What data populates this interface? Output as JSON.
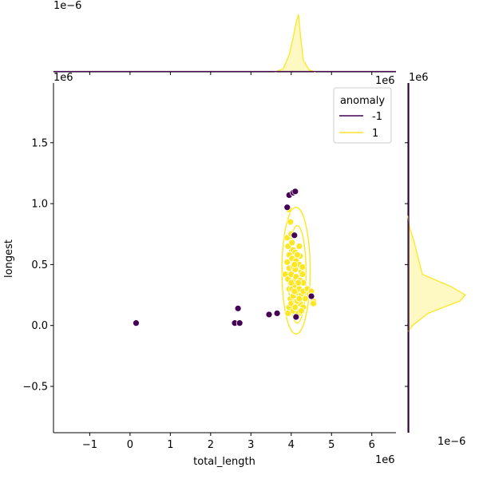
{
  "chart_data": {
    "type": "scatter",
    "xlabel": "total_length",
    "ylabel": "longest",
    "x_offset_label": "1e6",
    "y_offset_label": "1e6",
    "xlim": [
      -1.9,
      6.6
    ],
    "ylim": [
      -0.88,
      1.99
    ],
    "xticks": [
      -1,
      0,
      1,
      2,
      3,
      4,
      5,
      6
    ],
    "yticks": [
      -0.5,
      0.0,
      0.5,
      1.0,
      1.5
    ],
    "xtick_labels": [
      "−1",
      "0",
      "1",
      "2",
      "3",
      "4",
      "5",
      "6"
    ],
    "ytick_labels": [
      "−0.5",
      "0.0",
      "0.5",
      "1.0",
      "1.5"
    ],
    "legend": {
      "title": "anomaly",
      "placement": "top-right",
      "entries": [
        {
          "label": "-1",
          "color": "#440154"
        },
        {
          "label": "1",
          "color": "#fde725"
        }
      ]
    },
    "series": [
      {
        "name": "-1",
        "color": "#440154",
        "points": [
          [
            0.15,
            0.02
          ],
          [
            2.6,
            0.02
          ],
          [
            2.72,
            0.02
          ],
          [
            2.68,
            0.14
          ],
          [
            3.45,
            0.09
          ],
          [
            3.65,
            0.1
          ],
          [
            3.9,
            0.97
          ],
          [
            3.95,
            1.07
          ],
          [
            4.05,
            1.09
          ],
          [
            4.1,
            1.1
          ],
          [
            4.08,
            0.74
          ],
          [
            4.12,
            0.07
          ],
          [
            4.5,
            0.24
          ]
        ]
      },
      {
        "name": "1",
        "color": "#fde725",
        "points": [
          [
            3.85,
            0.42
          ],
          [
            3.9,
            0.72
          ],
          [
            3.92,
            0.65
          ],
          [
            3.95,
            0.58
          ],
          [
            3.9,
            0.52
          ],
          [
            3.95,
            0.47
          ],
          [
            3.92,
            0.38
          ],
          [
            3.95,
            0.3
          ],
          [
            3.98,
            0.22
          ],
          [
            3.95,
            0.15
          ],
          [
            3.92,
            0.1
          ],
          [
            4.0,
            0.75
          ],
          [
            4.02,
            0.68
          ],
          [
            4.05,
            0.62
          ],
          [
            4.02,
            0.55
          ],
          [
            4.05,
            0.48
          ],
          [
            4.0,
            0.42
          ],
          [
            4.05,
            0.36
          ],
          [
            4.02,
            0.3
          ],
          [
            4.05,
            0.24
          ],
          [
            4.0,
            0.18
          ],
          [
            4.05,
            0.12
          ],
          [
            4.1,
            0.6
          ],
          [
            4.12,
            0.53
          ],
          [
            4.1,
            0.46
          ],
          [
            4.12,
            0.4
          ],
          [
            4.1,
            0.33
          ],
          [
            4.15,
            0.27
          ],
          [
            4.12,
            0.2
          ],
          [
            4.1,
            0.15
          ],
          [
            4.18,
            0.1
          ],
          [
            4.2,
            0.65
          ],
          [
            4.22,
            0.57
          ],
          [
            4.2,
            0.5
          ],
          [
            4.25,
            0.44
          ],
          [
            4.22,
            0.37
          ],
          [
            4.2,
            0.3
          ],
          [
            4.25,
            0.25
          ],
          [
            4.22,
            0.18
          ],
          [
            4.28,
            0.42
          ],
          [
            4.3,
            0.35
          ],
          [
            4.3,
            0.28
          ],
          [
            4.35,
            0.22
          ],
          [
            4.3,
            0.15
          ],
          [
            4.4,
            0.3
          ],
          [
            4.45,
            0.26
          ],
          [
            4.5,
            0.28
          ],
          [
            4.55,
            0.2
          ],
          [
            4.55,
            0.18
          ],
          [
            3.98,
            0.85
          ],
          [
            3.95,
            0.95
          ],
          [
            4.0,
            0.35
          ],
          [
            4.08,
            0.28
          ],
          [
            4.15,
            0.2
          ],
          [
            4.25,
            0.12
          ],
          [
            4.18,
            0.35
          ],
          [
            4.08,
            0.5
          ],
          [
            4.15,
            0.58
          ],
          [
            4.28,
            0.48
          ],
          [
            4.2,
            0.22
          ]
        ]
      }
    ],
    "kde_contours": [
      {
        "color": "#fde725",
        "x_center": 4.15,
        "y_center": 0.42,
        "x_halfwidth": 0.22,
        "y_halfwidth": 0.4
      },
      {
        "color": "#fde725",
        "x_center": 4.12,
        "y_center": 0.45,
        "x_halfwidth": 0.35,
        "y_halfwidth": 0.52
      }
    ],
    "top_marginal": {
      "offset_label": "1e−6",
      "density": [
        [
          3.6,
          0.0
        ],
        [
          3.8,
          0.05
        ],
        [
          3.95,
          0.3
        ],
        [
          4.05,
          0.6
        ],
        [
          4.12,
          0.85
        ],
        [
          4.18,
          1.0
        ],
        [
          4.22,
          0.7
        ],
        [
          4.3,
          0.2
        ],
        [
          4.45,
          0.03
        ],
        [
          4.6,
          0.0
        ]
      ]
    },
    "right_marginal": {
      "offset_label": "1e−6",
      "density": [
        [
          -0.05,
          0.0
        ],
        [
          0.0,
          0.08
        ],
        [
          0.1,
          0.35
        ],
        [
          0.2,
          0.9
        ],
        [
          0.25,
          1.0
        ],
        [
          0.32,
          0.75
        ],
        [
          0.42,
          0.25
        ],
        [
          0.55,
          0.18
        ],
        [
          0.7,
          0.1
        ],
        [
          0.8,
          0.03
        ],
        [
          0.9,
          0.0
        ]
      ]
    }
  }
}
